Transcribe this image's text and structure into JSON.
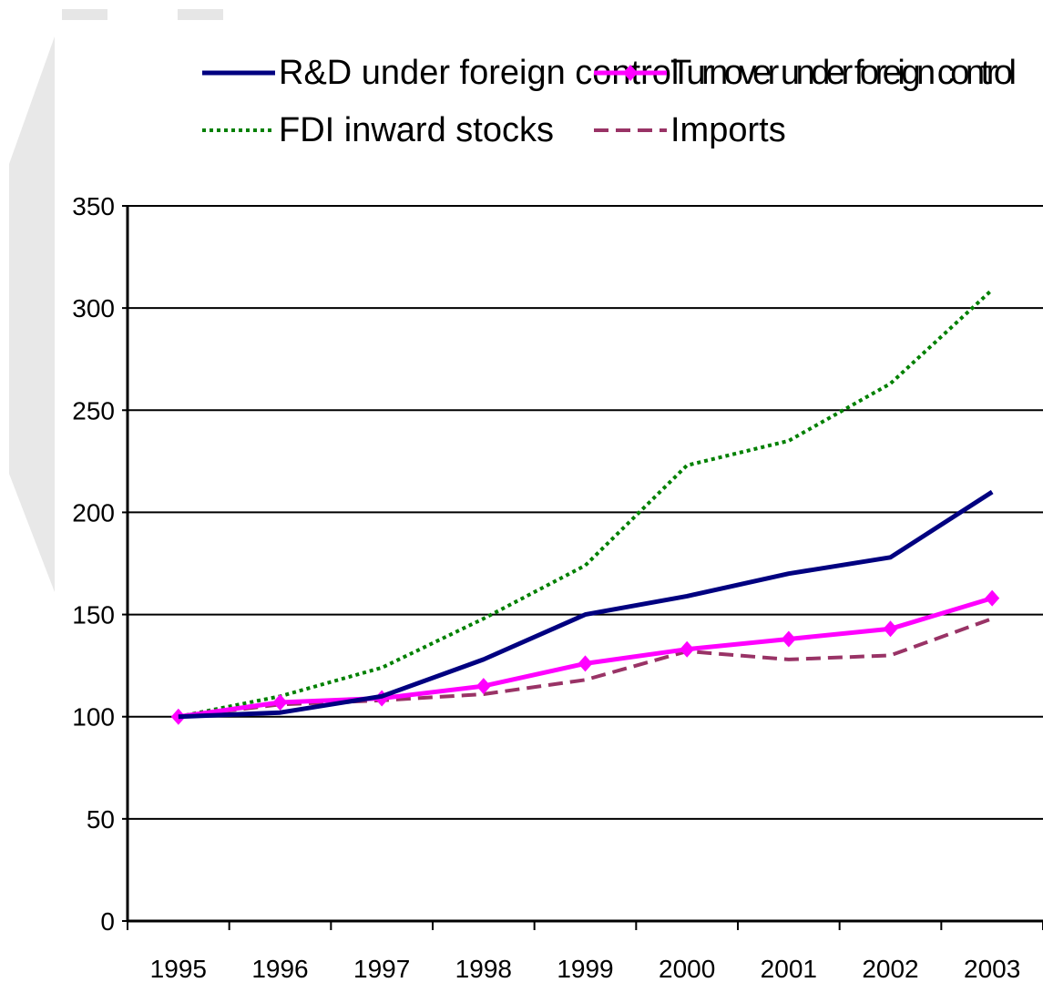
{
  "chart_data": {
    "type": "line",
    "title": "",
    "xlabel": "",
    "ylabel": "",
    "categories": [
      "1995",
      "1996",
      "1997",
      "1998",
      "1999",
      "2000",
      "2001",
      "2002",
      "2003"
    ],
    "ylim": [
      0,
      350
    ],
    "yticks": [
      0,
      50,
      100,
      150,
      200,
      250,
      300,
      350
    ],
    "grid": "horizontal",
    "legend_position": "top",
    "series": [
      {
        "name": "R&D under foreign control",
        "color": "#000080",
        "style": "solid",
        "marker": "none",
        "values": [
          100,
          102,
          110,
          128,
          150,
          159,
          170,
          178,
          210
        ]
      },
      {
        "name": "Turnover under foreign control",
        "color": "#ff00ff",
        "style": "solid",
        "marker": "diamond",
        "values": [
          100,
          107,
          109,
          115,
          126,
          133,
          138,
          143,
          158
        ]
      },
      {
        "name": "FDI inward stocks",
        "color": "#008000",
        "style": "dotted",
        "marker": "none",
        "values": [
          100,
          110,
          124,
          148,
          174,
          223,
          235,
          263,
          309
        ]
      },
      {
        "name": "Imports",
        "color": "#993366",
        "style": "dashed",
        "marker": "none",
        "values": [
          100,
          106,
          108,
          111,
          118,
          132,
          128,
          130,
          148
        ]
      }
    ]
  }
}
